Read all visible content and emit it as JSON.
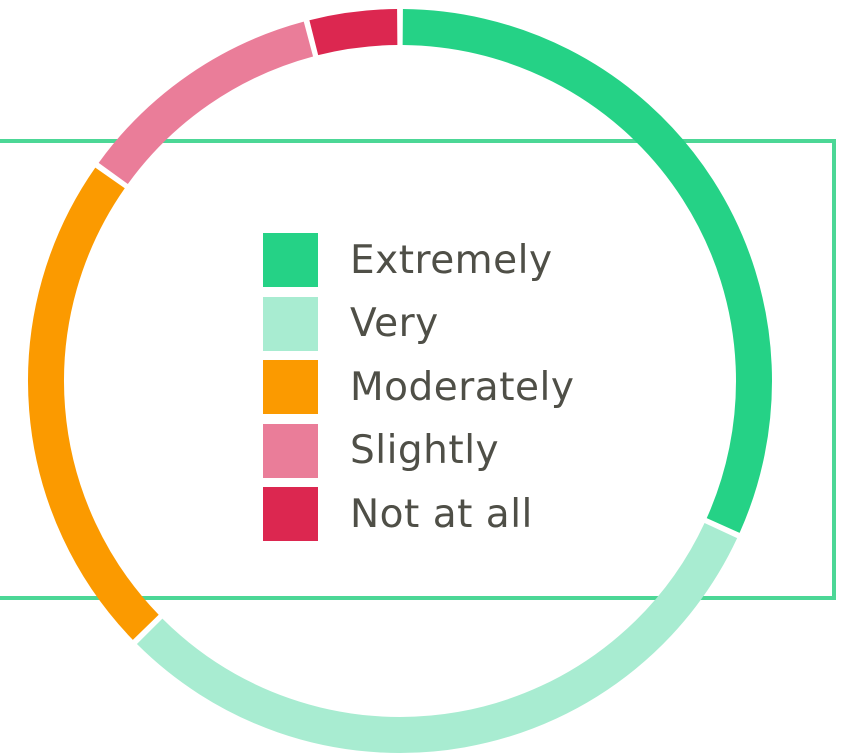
{
  "chart_data": {
    "type": "pie",
    "variant": "donut",
    "categories": [
      "Extremely",
      "Very",
      "Moderately",
      "Slightly",
      "Not at all"
    ],
    "values": [
      31.5,
      30.5,
      22,
      11,
      4
    ],
    "colors": [
      "#25d286",
      "#a8ecd1",
      "#fb9a00",
      "#ea7d99",
      "#dc2750"
    ],
    "start": "top, clockwise",
    "legend_position": "center"
  },
  "legend": {
    "items": [
      {
        "label": "Extremely",
        "color": "#25d286"
      },
      {
        "label": "Very",
        "color": "#a8ecd1"
      },
      {
        "label": "Moderately",
        "color": "#fb9a00"
      },
      {
        "label": "Slightly",
        "color": "#ea7d99"
      },
      {
        "label": "Not at all",
        "color": "#dc2750"
      }
    ]
  },
  "frame": {
    "border_color": "#4cd796"
  }
}
